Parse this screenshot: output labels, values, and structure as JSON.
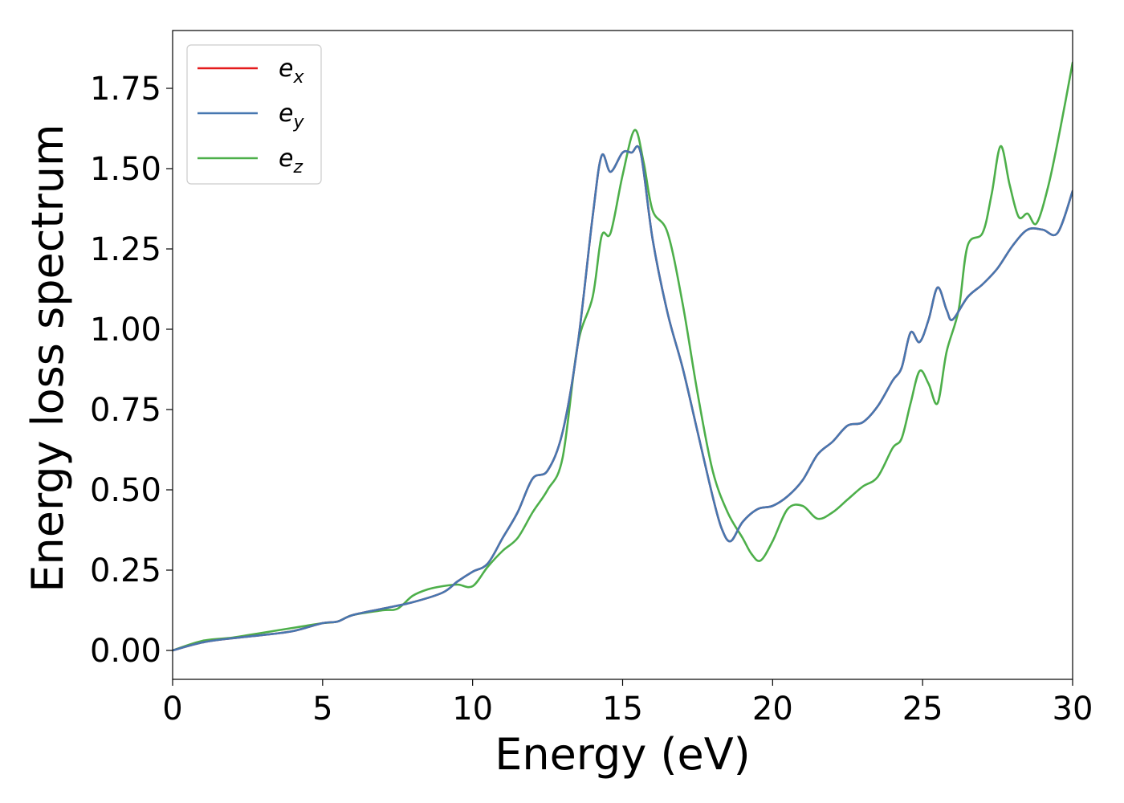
{
  "chart_data": {
    "type": "line",
    "xlabel": "Energy (eV)",
    "ylabel": "Energy loss spectrum",
    "xlim": [
      0,
      30
    ],
    "ylim": [
      -0.09,
      1.93
    ],
    "xticks": [
      0,
      5,
      10,
      15,
      20,
      25,
      30
    ],
    "xtick_labels": [
      "0",
      "5",
      "10",
      "15",
      "20",
      "25",
      "30"
    ],
    "yticks": [
      0,
      0.25,
      0.5,
      0.75,
      1.0,
      1.25,
      1.5,
      1.75
    ],
    "ytick_labels": [
      "0.00",
      "0.25",
      "0.50",
      "0.75",
      "1.00",
      "1.25",
      "1.50",
      "1.75"
    ],
    "grid": false,
    "legend_position": "top-left",
    "series": [
      {
        "name_base": "e",
        "name_sub": "x",
        "color": "#e41a1c",
        "x": [
          0,
          1,
          2,
          3,
          4,
          5,
          5.5,
          6,
          7,
          8,
          9,
          9.5,
          10,
          10.5,
          11,
          11.5,
          12,
          12.5,
          13,
          13.5,
          14,
          14.3,
          14.6,
          15,
          15.3,
          15.6,
          16,
          16.5,
          17,
          17.5,
          18,
          18.3,
          18.6,
          19,
          19.5,
          20,
          20.5,
          21,
          21.5,
          22,
          22.5,
          23,
          23.5,
          24,
          24.3,
          24.6,
          24.9,
          25.2,
          25.5,
          25.8,
          26,
          26.5,
          27,
          27.5,
          28,
          28.5,
          29,
          29.5,
          30
        ],
        "y": [
          0,
          0.025,
          0.038,
          0.048,
          0.06,
          0.085,
          0.09,
          0.11,
          0.13,
          0.15,
          0.18,
          0.215,
          0.245,
          0.27,
          0.35,
          0.43,
          0.535,
          0.56,
          0.68,
          0.95,
          1.35,
          1.54,
          1.49,
          1.55,
          1.55,
          1.55,
          1.28,
          1.05,
          0.88,
          0.68,
          0.48,
          0.38,
          0.34,
          0.4,
          0.44,
          0.45,
          0.48,
          0.53,
          0.61,
          0.65,
          0.7,
          0.71,
          0.76,
          0.84,
          0.88,
          0.99,
          0.96,
          1.03,
          1.13,
          1.06,
          1.03,
          1.1,
          1.14,
          1.19,
          1.26,
          1.31,
          1.31,
          1.3,
          1.43
        ]
      },
      {
        "name_base": "e",
        "name_sub": "y",
        "color": "#4677b0",
        "x": [
          0,
          1,
          2,
          3,
          4,
          5,
          5.5,
          6,
          7,
          8,
          9,
          9.5,
          10,
          10.5,
          11,
          11.5,
          12,
          12.5,
          13,
          13.5,
          14,
          14.3,
          14.6,
          15,
          15.3,
          15.6,
          16,
          16.5,
          17,
          17.5,
          18,
          18.3,
          18.6,
          19,
          19.5,
          20,
          20.5,
          21,
          21.5,
          22,
          22.5,
          23,
          23.5,
          24,
          24.3,
          24.6,
          24.9,
          25.2,
          25.5,
          25.8,
          26,
          26.5,
          27,
          27.5,
          28,
          28.5,
          29,
          29.5,
          30
        ],
        "y": [
          0,
          0.025,
          0.038,
          0.048,
          0.06,
          0.085,
          0.09,
          0.11,
          0.13,
          0.15,
          0.18,
          0.215,
          0.245,
          0.27,
          0.35,
          0.43,
          0.535,
          0.56,
          0.68,
          0.95,
          1.35,
          1.54,
          1.49,
          1.55,
          1.55,
          1.55,
          1.28,
          1.05,
          0.88,
          0.68,
          0.48,
          0.38,
          0.34,
          0.4,
          0.44,
          0.45,
          0.48,
          0.53,
          0.61,
          0.65,
          0.7,
          0.71,
          0.76,
          0.84,
          0.88,
          0.99,
          0.96,
          1.03,
          1.13,
          1.06,
          1.03,
          1.1,
          1.14,
          1.19,
          1.26,
          1.31,
          1.31,
          1.3,
          1.43
        ]
      },
      {
        "name_base": "e",
        "name_sub": "z",
        "color": "#4daf4a",
        "x": [
          0,
          1,
          2,
          3,
          4,
          5,
          5.5,
          6,
          7,
          7.5,
          8,
          8.5,
          9,
          9.5,
          10,
          10.5,
          11,
          11.5,
          12,
          12.5,
          13,
          13.5,
          14,
          14.3,
          14.6,
          15,
          15.4,
          15.7,
          16,
          16.5,
          17,
          17.5,
          18,
          18.5,
          19,
          19.3,
          19.6,
          20,
          20.5,
          21,
          21.5,
          22,
          22.5,
          23,
          23.5,
          24,
          24.3,
          24.6,
          24.9,
          25.2,
          25.5,
          25.8,
          26.2,
          26.5,
          27,
          27.3,
          27.6,
          27.9,
          28.2,
          28.5,
          28.8,
          29.2,
          29.6,
          30
        ],
        "y": [
          0,
          0.03,
          0.04,
          0.055,
          0.07,
          0.085,
          0.09,
          0.11,
          0.125,
          0.13,
          0.17,
          0.19,
          0.2,
          0.205,
          0.2,
          0.26,
          0.31,
          0.35,
          0.43,
          0.5,
          0.6,
          0.95,
          1.1,
          1.29,
          1.3,
          1.48,
          1.62,
          1.52,
          1.37,
          1.3,
          1.08,
          0.8,
          0.56,
          0.43,
          0.35,
          0.3,
          0.28,
          0.34,
          0.44,
          0.45,
          0.41,
          0.43,
          0.47,
          0.51,
          0.54,
          0.63,
          0.66,
          0.77,
          0.87,
          0.83,
          0.77,
          0.93,
          1.06,
          1.26,
          1.3,
          1.42,
          1.57,
          1.45,
          1.35,
          1.36,
          1.33,
          1.45,
          1.63,
          1.83
        ]
      }
    ]
  }
}
